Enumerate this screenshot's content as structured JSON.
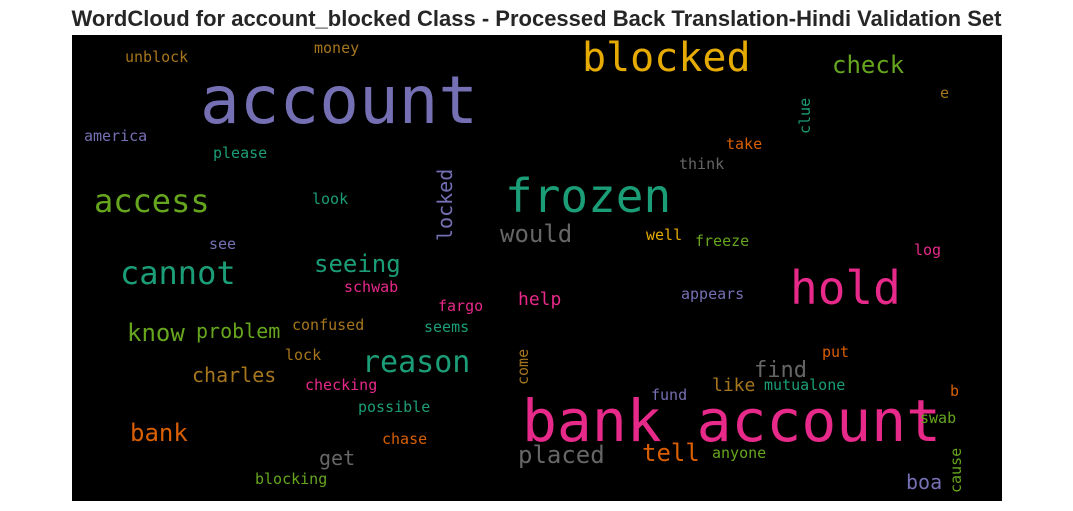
{
  "title": "WordCloud for account_blocked Class - Processed Back Translation-Hindi Validation Set",
  "palette": {
    "background": "#000000",
    "purple": "#7570b3",
    "orange": "#d95f02",
    "green": "#1b9e77",
    "pink": "#e7298a",
    "lime": "#66a61e",
    "gold": "#e6ab02",
    "brown": "#a6761d",
    "gray": "#666666"
  },
  "words": [
    {
      "text": "account",
      "color": "#7570b3",
      "weight": 100
    },
    {
      "text": "bank account",
      "color": "#e7298a",
      "weight": 90
    },
    {
      "text": "blocked",
      "color": "#e6ab02",
      "weight": 70
    },
    {
      "text": "frozen",
      "color": "#1b9e77",
      "weight": 70
    },
    {
      "text": "hold",
      "color": "#e7298a",
      "weight": 65
    },
    {
      "text": "cannot",
      "color": "#1b9e77",
      "weight": 55
    },
    {
      "text": "access",
      "color": "#66a61e",
      "weight": 55
    },
    {
      "text": "reason",
      "color": "#1b9e77",
      "weight": 50
    },
    {
      "text": "check",
      "color": "#66a61e",
      "weight": 42
    },
    {
      "text": "seeing",
      "color": "#1b9e77",
      "weight": 42
    },
    {
      "text": "would",
      "color": "#666666",
      "weight": 40
    },
    {
      "text": "know",
      "color": "#66a61e",
      "weight": 38
    },
    {
      "text": "placed",
      "color": "#666666",
      "weight": 40
    },
    {
      "text": "bank",
      "color": "#d95f02",
      "weight": 38
    },
    {
      "text": "tell",
      "color": "#d95f02",
      "weight": 38
    },
    {
      "text": "locked",
      "color": "#7570b3",
      "weight": 34
    },
    {
      "text": "problem",
      "color": "#66a61e",
      "weight": 32
    },
    {
      "text": "charles",
      "color": "#a6761d",
      "weight": 32
    },
    {
      "text": "find",
      "color": "#666666",
      "weight": 32
    },
    {
      "text": "help",
      "color": "#e7298a",
      "weight": 28
    },
    {
      "text": "like",
      "color": "#a6761d",
      "weight": 28
    },
    {
      "text": "get",
      "color": "#666666",
      "weight": 28
    },
    {
      "text": "boa",
      "color": "#7570b3",
      "weight": 28
    },
    {
      "text": "unblock",
      "color": "#a6761d",
      "weight": 22
    },
    {
      "text": "money",
      "color": "#a6761d",
      "weight": 22
    },
    {
      "text": "america",
      "color": "#7570b3",
      "weight": 22
    },
    {
      "text": "please",
      "color": "#1b9e77",
      "weight": 22
    },
    {
      "text": "clue",
      "color": "#1b9e77",
      "weight": 22
    },
    {
      "text": "take",
      "color": "#d95f02",
      "weight": 22
    },
    {
      "text": "think",
      "color": "#666666",
      "weight": 22
    },
    {
      "text": "e",
      "color": "#a6761d",
      "weight": 22
    },
    {
      "text": "look",
      "color": "#1b9e77",
      "weight": 22
    },
    {
      "text": "see",
      "color": "#7570b3",
      "weight": 22
    },
    {
      "text": "well",
      "color": "#e6ab02",
      "weight": 22
    },
    {
      "text": "freeze",
      "color": "#66a61e",
      "weight": 22
    },
    {
      "text": "log",
      "color": "#e7298a",
      "weight": 22
    },
    {
      "text": "schwab",
      "color": "#e7298a",
      "weight": 22
    },
    {
      "text": "fargo",
      "color": "#e7298a",
      "weight": 22
    },
    {
      "text": "appears",
      "color": "#7570b3",
      "weight": 22
    },
    {
      "text": "confused",
      "color": "#a6761d",
      "weight": 22
    },
    {
      "text": "seems",
      "color": "#1b9e77",
      "weight": 22
    },
    {
      "text": "lock",
      "color": "#a6761d",
      "weight": 22
    },
    {
      "text": "come",
      "color": "#a6761d",
      "weight": 22
    },
    {
      "text": "put",
      "color": "#d95f02",
      "weight": 22
    },
    {
      "text": "checking",
      "color": "#e7298a",
      "weight": 22
    },
    {
      "text": "mutualone",
      "color": "#1b9e77",
      "weight": 22
    },
    {
      "text": "b",
      "color": "#d95f02",
      "weight": 22
    },
    {
      "text": "fund",
      "color": "#7570b3",
      "weight": 22
    },
    {
      "text": "possible",
      "color": "#1b9e77",
      "weight": 22
    },
    {
      "text": "swab",
      "color": "#66a61e",
      "weight": 22
    },
    {
      "text": "chase",
      "color": "#d95f02",
      "weight": 22
    },
    {
      "text": "anyone",
      "color": "#66a61e",
      "weight": 22
    },
    {
      "text": "cause",
      "color": "#66a61e",
      "weight": 22
    },
    {
      "text": "blocking",
      "color": "#66a61e",
      "weight": 22
    }
  ]
}
